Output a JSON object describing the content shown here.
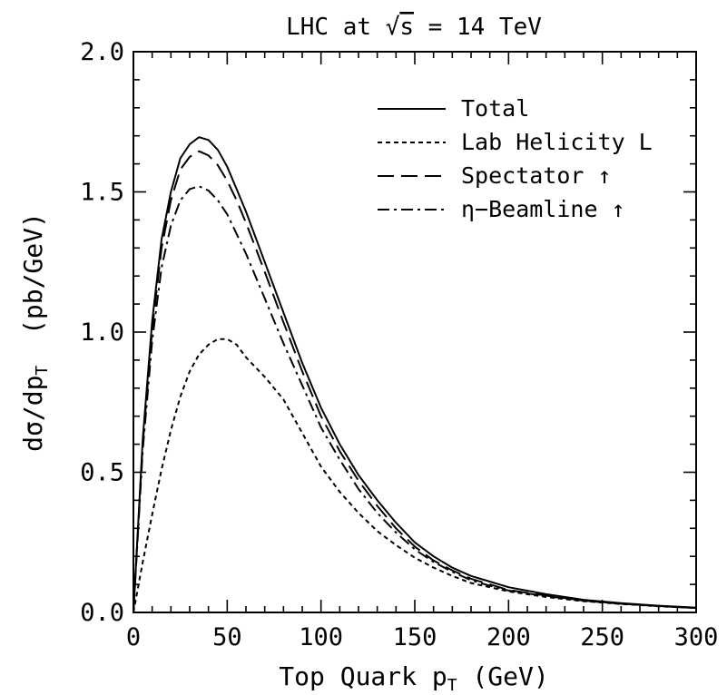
{
  "chart_data": {
    "type": "line",
    "title": "LHC at √s = 14 TeV",
    "title_parts": {
      "prefix": "LHC at ",
      "sqrt_symbol": "√",
      "sqrt_arg": "s",
      "suffix": " = 14 TeV"
    },
    "xlabel": "Top Quark p_T (GeV)",
    "xlabel_parts": {
      "main": "Top Quark p",
      "sub": "T",
      "unit": " (GeV)"
    },
    "ylabel": "dσ/dp_T (pb/GeV)",
    "ylabel_parts": {
      "main": "dσ/dp",
      "sub": "T",
      "unit": "  (pb/GeV)"
    },
    "xlim": [
      0,
      300
    ],
    "ylim": [
      0,
      2.0
    ],
    "x_ticks": [
      0,
      50,
      100,
      150,
      200,
      250,
      300
    ],
    "x_tick_labels": [
      "0",
      "50",
      "100",
      "150",
      "200",
      "250",
      "300"
    ],
    "y_ticks": [
      0,
      0.5,
      1.0,
      1.5,
      2.0
    ],
    "y_tick_labels": [
      "0.0",
      "0.5",
      "1.0",
      "1.5",
      "2.0"
    ],
    "x_minor_step": 10,
    "y_minor_step": 0.1,
    "grid": false,
    "legend_position": "top-right",
    "x": [
      0,
      5,
      10,
      15,
      20,
      25,
      30,
      35,
      40,
      45,
      50,
      55,
      60,
      70,
      80,
      90,
      100,
      110,
      120,
      130,
      140,
      150,
      160,
      170,
      180,
      190,
      200,
      220,
      240,
      260,
      280,
      300
    ],
    "series": [
      {
        "name": "Total",
        "style": "solid",
        "values": [
          0,
          0.62,
          1.04,
          1.33,
          1.5,
          1.62,
          1.67,
          1.695,
          1.685,
          1.65,
          1.59,
          1.51,
          1.43,
          1.25,
          1.07,
          0.89,
          0.73,
          0.6,
          0.49,
          0.4,
          0.32,
          0.25,
          0.2,
          0.16,
          0.13,
          0.11,
          0.09,
          0.065,
          0.045,
          0.033,
          0.024,
          0.017
        ]
      },
      {
        "name": "Lab Helicity L",
        "style": "dotted",
        "values": [
          0,
          0.18,
          0.35,
          0.51,
          0.65,
          0.77,
          0.86,
          0.92,
          0.955,
          0.975,
          0.975,
          0.955,
          0.91,
          0.84,
          0.76,
          0.64,
          0.52,
          0.43,
          0.355,
          0.29,
          0.24,
          0.195,
          0.16,
          0.13,
          0.105,
          0.09,
          0.075,
          0.055,
          0.04,
          0.03,
          0.022,
          0.016
        ]
      },
      {
        "name": "Spectator ↑",
        "style": "dashed",
        "values": [
          0,
          0.6,
          1.01,
          1.3,
          1.47,
          1.58,
          1.625,
          1.645,
          1.63,
          1.595,
          1.54,
          1.47,
          1.39,
          1.215,
          1.035,
          0.86,
          0.7,
          0.575,
          0.47,
          0.38,
          0.3,
          0.235,
          0.185,
          0.15,
          0.12,
          0.1,
          0.08,
          0.06,
          0.042,
          0.031,
          0.023,
          0.016
        ]
      },
      {
        "name": "η−Beamline ↑",
        "style": "dashdot",
        "values": [
          0,
          0.58,
          0.97,
          1.23,
          1.38,
          1.47,
          1.51,
          1.52,
          1.505,
          1.47,
          1.42,
          1.35,
          1.28,
          1.12,
          0.96,
          0.81,
          0.66,
          0.545,
          0.44,
          0.355,
          0.285,
          0.225,
          0.18,
          0.145,
          0.115,
          0.095,
          0.078,
          0.058,
          0.042,
          0.031,
          0.023,
          0.016
        ]
      }
    ]
  },
  "colors": {
    "ink": "#000000",
    "background": "#ffffff"
  }
}
